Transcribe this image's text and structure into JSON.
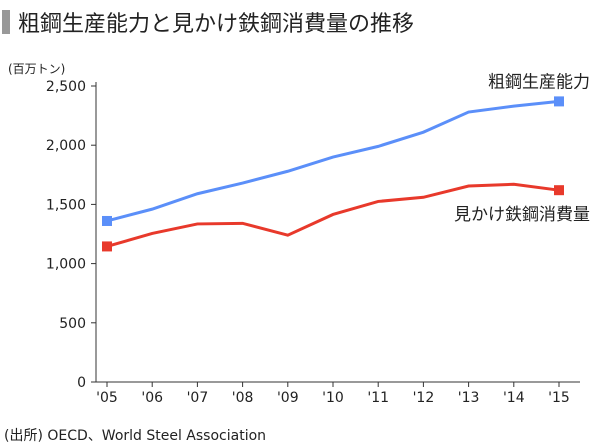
{
  "title": "粗鋼生産能力と見かけ鉄鋼消費量の推移",
  "unit": "(百万トン)",
  "source": "(出所) OECD、World Steel Association",
  "chart_data": {
    "type": "line",
    "title": "粗鋼生産能力と見かけ鉄鋼消費量の推移",
    "ylabel": "(百万トン)",
    "xlabel": "",
    "ylim": [
      0,
      2500
    ],
    "yticks": [
      0,
      500,
      1000,
      1500,
      2000,
      2500
    ],
    "ytick_labels": [
      "0",
      "500",
      "1,000",
      "1,500",
      "2,000",
      "2,500"
    ],
    "categories": [
      "'05",
      "'06",
      "'07",
      "'08",
      "'09",
      "'10",
      "'11",
      "'12",
      "'13",
      "'14",
      "'15"
    ],
    "grid": false,
    "series": [
      {
        "name": "粗鋼生産能力",
        "color": "#5b8ff9",
        "values": [
          1360,
          1460,
          1590,
          1680,
          1780,
          1900,
          1990,
          2110,
          2280,
          2330,
          2370
        ]
      },
      {
        "name": "見かけ鉄鋼消費量",
        "color": "#e8392b",
        "values": [
          1145,
          1255,
          1335,
          1340,
          1240,
          1415,
          1525,
          1560,
          1655,
          1670,
          1620
        ]
      }
    ]
  }
}
